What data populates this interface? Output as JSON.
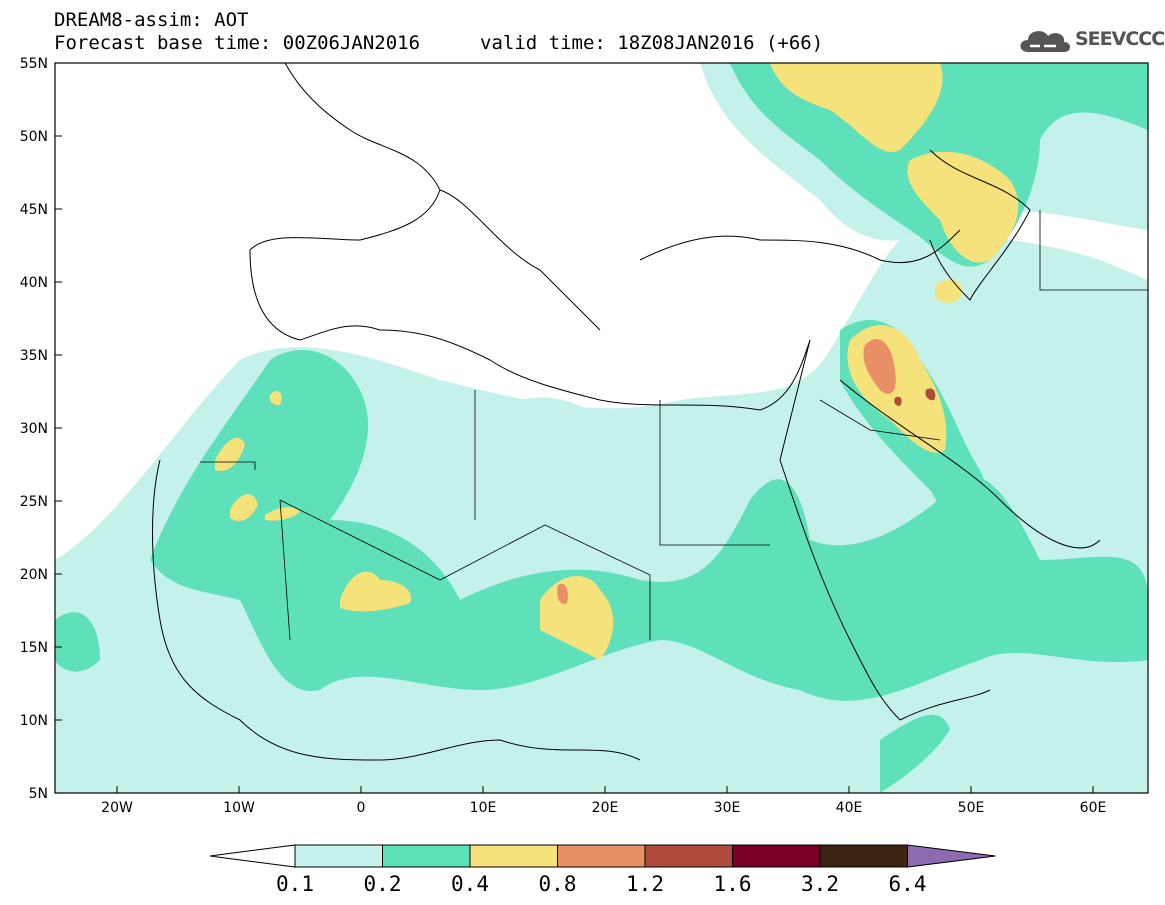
{
  "header": {
    "title": "DREAM8-assim: AOT",
    "base_time": "Forecast base time: 00Z06JAN2016",
    "valid_time": "valid time: 18Z08JAN2016 (+66)",
    "logo_text": "SEEVCCC"
  },
  "axes": {
    "lat_labels": [
      "55N",
      "50N",
      "45N",
      "40N",
      "35N",
      "30N",
      "25N",
      "20N",
      "15N",
      "10N",
      "5N"
    ],
    "lon_labels": [
      "20W",
      "10W",
      "0",
      "10E",
      "20E",
      "30E",
      "40E",
      "50E",
      "60E"
    ]
  },
  "colorbar": {
    "labels": [
      "0.1",
      "0.2",
      "0.4",
      "0.8",
      "1.2",
      "1.6",
      "3.2",
      "6.4"
    ],
    "colors": [
      "#ffffff",
      "#c4f2ea",
      "#5ee0bb",
      "#f5e27a",
      "#e98f68",
      "#b04a3c",
      "#7a0026",
      "#3d2412",
      "#8c6bb0"
    ]
  },
  "palette": {
    "c1": "#c4f2ea",
    "c2": "#5ee0bb",
    "c3": "#f5e27a",
    "c4": "#e98f68",
    "c5": "#b04a3c"
  }
}
